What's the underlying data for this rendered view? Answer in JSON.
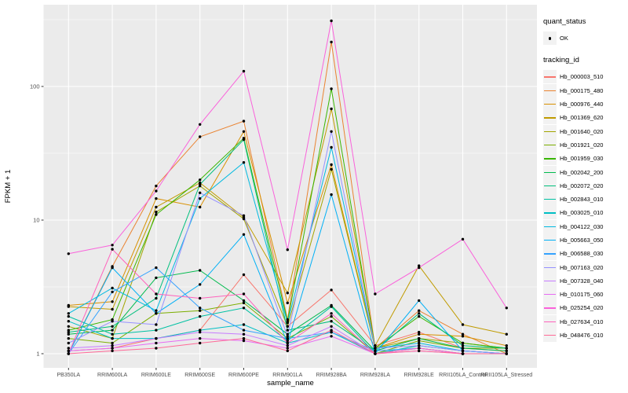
{
  "chart_data": {
    "type": "line",
    "xlabel": "sample_name",
    "ylabel": "FPKM + 1",
    "y_scale": "log10",
    "y_ticks": [
      1,
      10,
      100
    ],
    "y_tick_labels": [
      "1",
      "10",
      "100"
    ],
    "ylim_px_note": "log axis, decades 1-10-100",
    "panel_bg": "#EBEBEB",
    "grid_color": "#FFFFFF",
    "point_color": "#000000",
    "axis_text_color": "#4D4D4D",
    "categories": [
      "PB350LA",
      "RRIM600LA",
      "RRIM600LE",
      "RRIM600SE",
      "RRIM600PE",
      "RRIM901LA",
      "RRIM928BA",
      "RRIM928LA",
      "RRIM928LE",
      "RRII105LA_Control",
      "RRII105LA_Stressed"
    ],
    "legend": {
      "quant_status_title": "quant_status",
      "quant_status_items": [
        {
          "label": "OK",
          "shape": "point"
        }
      ],
      "tracking_id_title": "tracking_id"
    },
    "series": [
      {
        "name": "Hb_000003_510",
        "color": "#F8766D",
        "values": [
          1.05,
          1.1,
          1.3,
          1.5,
          3.9,
          1.6,
          3.0,
          1.15,
          1.45,
          1.1,
          1.05
        ]
      },
      {
        "name": "Hb_000175_480",
        "color": "#EA8331",
        "values": [
          1.0,
          4.5,
          18.0,
          42.0,
          55.0,
          1.8,
          215,
          1.1,
          2.1,
          1.4,
          1.0
        ]
      },
      {
        "name": "Hb_000976_440",
        "color": "#D89000",
        "values": [
          2.3,
          2.45,
          14.5,
          12.5,
          46.0,
          2.4,
          26.0,
          1.1,
          1.4,
          1.35,
          1.15
        ]
      },
      {
        "name": "Hb_001369_620",
        "color": "#C09B00",
        "values": [
          2.25,
          2.15,
          12.5,
          19.0,
          10.5,
          2.85,
          68.0,
          1.15,
          4.55,
          1.65,
          1.4
        ]
      },
      {
        "name": "Hb_001640_020",
        "color": "#A3A500",
        "values": [
          1.6,
          1.3,
          11.5,
          18.0,
          10.2,
          1.6,
          24.0,
          1.1,
          1.3,
          1.2,
          1.1
        ]
      },
      {
        "name": "Hb_001921_020",
        "color": "#7CAE00",
        "values": [
          1.3,
          1.2,
          2.0,
          2.1,
          2.4,
          1.3,
          1.9,
          1.0,
          1.25,
          1.1,
          1.1
        ]
      },
      {
        "name": "Hb_001959_030",
        "color": "#39B600",
        "values": [
          1.5,
          1.8,
          11.0,
          20.0,
          41.0,
          1.75,
          96.0,
          1.1,
          1.9,
          1.2,
          1.1
        ]
      },
      {
        "name": "Hb_002042_200",
        "color": "#00BB4E",
        "values": [
          1.4,
          1.5,
          3.7,
          4.2,
          2.5,
          1.4,
          2.3,
          1.05,
          1.3,
          1.1,
          1.05
        ]
      },
      {
        "name": "Hb_002072_020",
        "color": "#00BF7D",
        "values": [
          1.45,
          1.6,
          2.6,
          18.5,
          40.0,
          1.5,
          1.75,
          1.05,
          2.0,
          1.15,
          1.1
        ]
      },
      {
        "name": "Hb_002843_010",
        "color": "#00C1A3",
        "values": [
          1.9,
          1.4,
          1.5,
          1.9,
          2.2,
          1.25,
          2.25,
          1.0,
          1.15,
          1.05,
          1.0
        ]
      },
      {
        "name": "Hb_003025_010",
        "color": "#00BFC4",
        "values": [
          1.75,
          1.3,
          1.3,
          1.5,
          1.65,
          1.2,
          1.45,
          1.0,
          1.1,
          1.0,
          1.0
        ]
      },
      {
        "name": "Hb_004122_030",
        "color": "#00BAE0",
        "values": [
          2.0,
          3.1,
          2.1,
          14.5,
          27.0,
          1.7,
          35.0,
          1.1,
          1.2,
          1.05,
          1.0
        ]
      },
      {
        "name": "Hb_005663_050",
        "color": "#00B0F6",
        "values": [
          1.0,
          4.4,
          2.0,
          3.3,
          7.8,
          1.2,
          15.5,
          1.0,
          2.5,
          1.05,
          1.0
        ]
      },
      {
        "name": "Hb_006588_030",
        "color": "#35A2FF",
        "values": [
          1.0,
          2.9,
          4.4,
          2.2,
          1.5,
          1.3,
          1.45,
          1.05,
          1.1,
          1.0,
          1.0
        ]
      },
      {
        "name": "Hb_007163_020",
        "color": "#9590FF",
        "values": [
          1.2,
          1.75,
          1.65,
          16.0,
          10.8,
          1.35,
          46.0,
          1.1,
          1.15,
          1.05,
          1.0
        ]
      },
      {
        "name": "Hb_007328_040",
        "color": "#C77CFF",
        "values": [
          1.1,
          1.15,
          1.3,
          1.45,
          1.4,
          1.15,
          1.6,
          1.0,
          1.1,
          1.0,
          1.0
        ]
      },
      {
        "name": "Hb_010175_060",
        "color": "#E76BF3",
        "values": [
          1.05,
          1.1,
          1.2,
          1.3,
          1.25,
          1.1,
          1.35,
          1.0,
          1.05,
          1.0,
          1.0
        ]
      },
      {
        "name": "Hb_025254_020",
        "color": "#FA62DB",
        "values": [
          5.6,
          6.5,
          16.5,
          52.0,
          130,
          6.0,
          310,
          2.8,
          4.4,
          7.2,
          2.2
        ]
      },
      {
        "name": "Hb_027634_010",
        "color": "#FF62BC",
        "values": [
          1.0,
          6.05,
          2.8,
          2.6,
          2.8,
          1.2,
          2.0,
          1.0,
          1.1,
          1.0,
          1.0
        ]
      },
      {
        "name": "Hb_048476_010",
        "color": "#FF6A98",
        "values": [
          1.0,
          1.05,
          1.1,
          1.2,
          1.3,
          1.05,
          1.5,
          1.0,
          1.05,
          1.0,
          1.0
        ]
      }
    ]
  }
}
